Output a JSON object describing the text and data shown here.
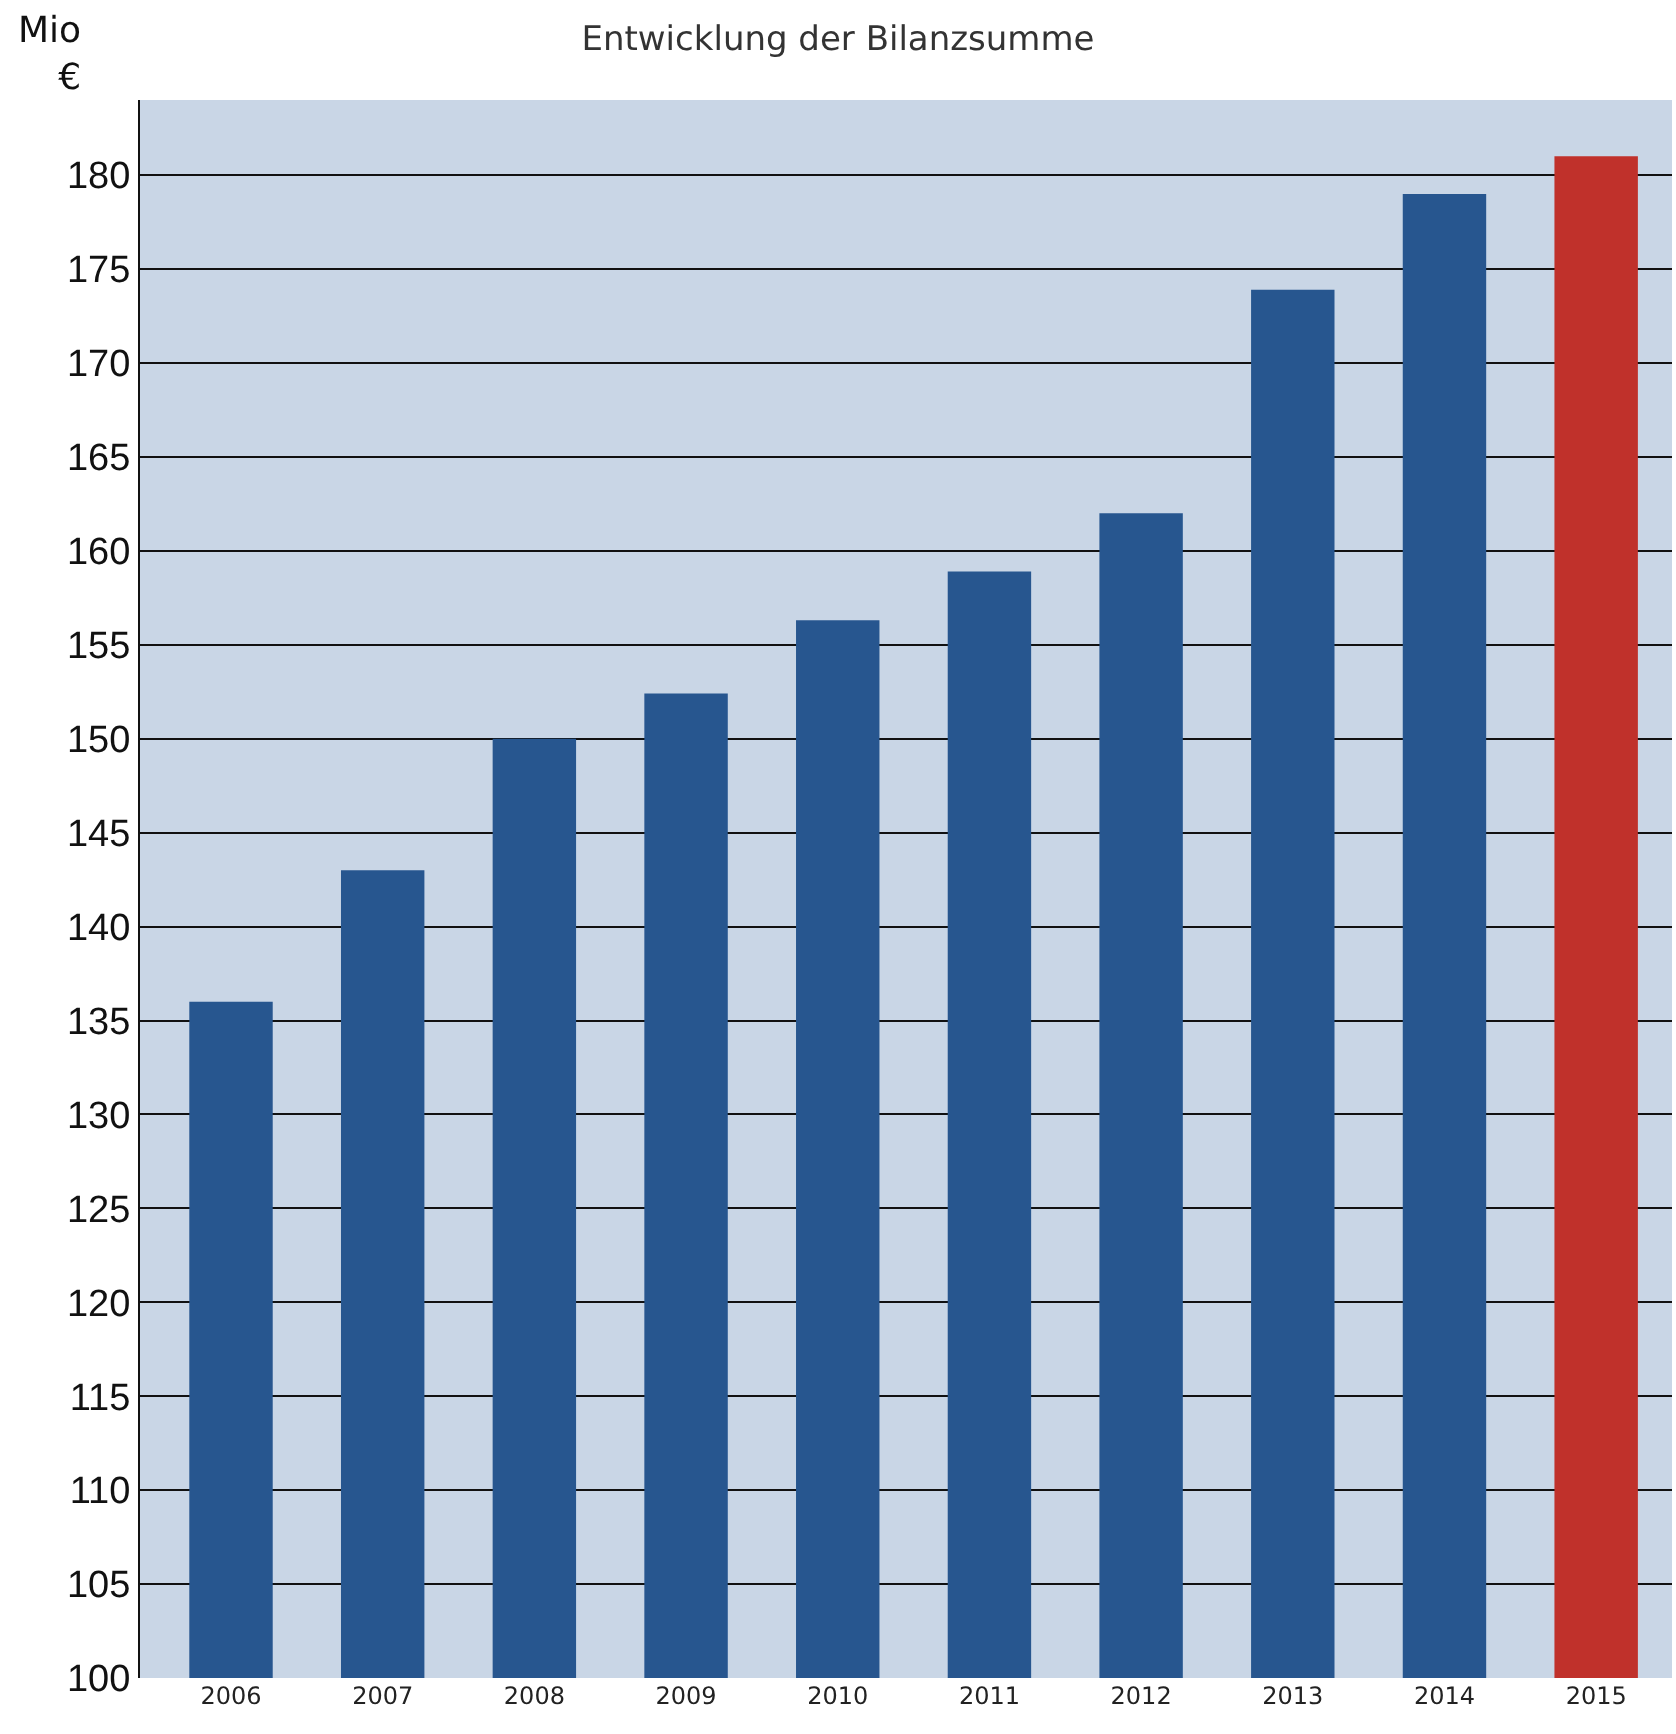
{
  "chart_data": {
    "type": "bar",
    "title": "Entwicklung der Bilanzsumme",
    "ylabel": "Mio €",
    "categories": [
      "2006",
      "2007",
      "2008",
      "2009",
      "2010",
      "2011",
      "2012",
      "2013",
      "2014",
      "2015"
    ],
    "values": [
      136,
      143,
      150,
      152.4,
      156.3,
      158.9,
      162,
      173.9,
      179,
      181
    ],
    "colors": [
      "#27568f",
      "#27568f",
      "#27568f",
      "#27568f",
      "#27568f",
      "#27568f",
      "#27568f",
      "#27568f",
      "#27568f",
      "#c0312b"
    ],
    "ylim": [
      100,
      184
    ],
    "yticks": [
      100,
      105,
      110,
      115,
      120,
      125,
      130,
      135,
      140,
      145,
      150,
      155,
      160,
      165,
      170,
      175,
      180
    ],
    "grid": "y"
  }
}
